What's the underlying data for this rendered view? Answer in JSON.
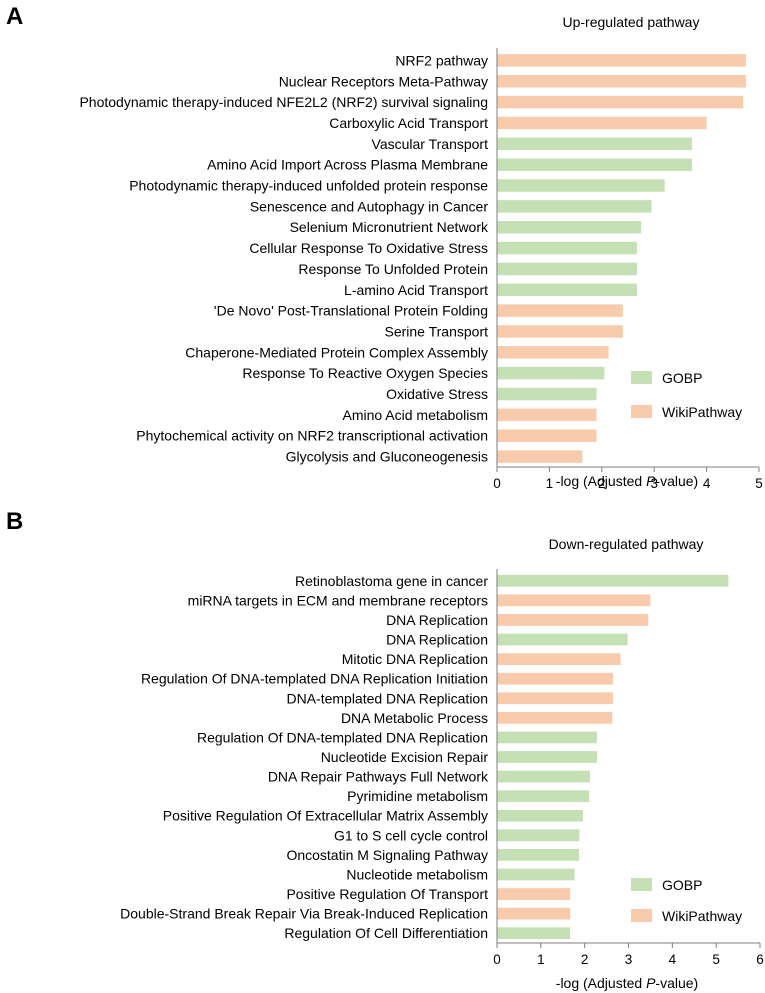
{
  "colors": {
    "GOBP": "#c5e0b4",
    "WikiPathway": "#f8cbad",
    "axis": "#7f7f7f"
  },
  "legend": {
    "gobp_label": "GOBP",
    "wiki_label": "WikiPathway"
  },
  "panels": {
    "a": {
      "letter": "A",
      "xlabel_prefix": "-log (Adjusted ",
      "xlabel_italic": "P",
      "xlabel_suffix": "-value)"
    },
    "b": {
      "letter": "B",
      "xlabel_prefix": "-log (Adjusted ",
      "xlabel_italic": "P",
      "xlabel_suffix": "-value)"
    }
  },
  "chart_data": [
    {
      "type": "bar",
      "orientation": "horizontal",
      "title": "Up-regulated pathway",
      "xlabel": "-log (Adjusted P-value)",
      "xlim": [
        0,
        5
      ],
      "xticks": [
        0,
        1,
        2,
        3,
        4,
        5
      ],
      "legend_placement": "bottom-right",
      "grid": false,
      "categories": [
        "NRF2 pathway",
        "Nuclear Receptors Meta-Pathway",
        "Photodynamic therapy-induced NFE2L2 (NRF2) survival signaling",
        "Carboxylic Acid Transport",
        "Vascular Transport",
        "Amino Acid Import Across Plasma Membrane",
        "Photodynamic therapy-induced unfolded protein response",
        "Senescence and Autophagy in Cancer",
        "Selenium Micronutrient Network",
        "Cellular Response To Oxidative Stress",
        "Response To Unfolded Protein",
        "L-amino Acid Transport",
        "'De Novo' Post-Translational Protein Folding",
        "Serine Transport",
        "Chaperone-Mediated Protein Complex Assembly",
        "Response To Reactive Oxygen Species",
        "Oxidative Stress",
        "Amino Acid metabolism",
        "Phytochemical activity on NRF2 transcriptional activation",
        "Glycolysis and Gluconeogenesis"
      ],
      "values": [
        4.75,
        4.75,
        4.7,
        4.0,
        3.72,
        3.72,
        3.2,
        2.95,
        2.75,
        2.67,
        2.67,
        2.67,
        2.4,
        2.4,
        2.13,
        2.05,
        1.9,
        1.9,
        1.9,
        1.63
      ],
      "groups": [
        "WikiPathway",
        "WikiPathway",
        "WikiPathway",
        "WikiPathway",
        "GOBP",
        "GOBP",
        "GOBP",
        "GOBP",
        "GOBP",
        "GOBP",
        "GOBP",
        "GOBP",
        "WikiPathway",
        "WikiPathway",
        "WikiPathway",
        "GOBP",
        "GOBP",
        "WikiPathway",
        "WikiPathway",
        "WikiPathway"
      ]
    },
    {
      "type": "bar",
      "orientation": "horizontal",
      "title": "Down-regulated pathway",
      "xlabel": "-log (Adjusted P-value)",
      "xlim": [
        0,
        6
      ],
      "xticks": [
        0,
        1,
        2,
        3,
        4,
        5,
        6
      ],
      "legend_placement": "bottom-right",
      "grid": false,
      "categories": [
        "Retinoblastoma gene in cancer",
        "miRNA targets in ECM and membrane receptors",
        "DNA Replication",
        "DNA Replication",
        "Mitotic DNA Replication",
        "Regulation Of DNA-templated DNA Replication Initiation",
        "DNA-templated DNA Replication",
        "DNA Metabolic Process",
        "Regulation Of DNA-templated DNA Replication",
        "Nucleotide Excision Repair",
        "DNA Repair Pathways Full Network",
        "Pyrimidine metabolism",
        "Positive Regulation Of Extracellular Matrix Assembly",
        "G1 to S cell cycle control",
        "Oncostatin M Signaling Pathway",
        "Nucleotide metabolism",
        "Positive Regulation Of Transport",
        "Double-Strand Break Repair Via Break-Induced Replication",
        "Regulation Of Cell Differentiation"
      ],
      "values": [
        5.28,
        3.5,
        3.45,
        2.98,
        2.82,
        2.65,
        2.65,
        2.63,
        2.28,
        2.28,
        2.12,
        2.1,
        1.96,
        1.88,
        1.87,
        1.77,
        1.67,
        1.67,
        1.67
      ],
      "groups": [
        "GOBP",
        "WikiPathway",
        "WikiPathway",
        "GOBP",
        "WikiPathway",
        "WikiPathway",
        "WikiPathway",
        "WikiPathway",
        "GOBP",
        "GOBP",
        "GOBP",
        "GOBP",
        "GOBP",
        "GOBP",
        "GOBP",
        "GOBP",
        "WikiPathway",
        "WikiPathway",
        "GOBP"
      ]
    }
  ]
}
